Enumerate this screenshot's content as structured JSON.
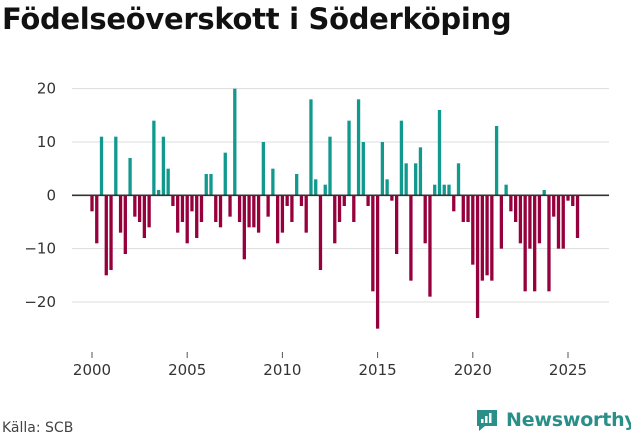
{
  "title": "Födelseöverskott i Söderköping",
  "source": "Källa: SCB",
  "brand": {
    "name": "Newsworthy",
    "icon": "newsworthy-logo-icon"
  },
  "colors": {
    "positive": "#11998e",
    "negative": "#96003c",
    "zero_line": "#333333",
    "grid": "#dddddd",
    "brand": "#2a8f88"
  },
  "chart_data": {
    "type": "bar",
    "title": "Födelseöverskott i Söderköping",
    "xlabel": "",
    "ylabel": "",
    "ylim": [
      -29,
      22
    ],
    "yticks": [
      -20,
      -10,
      0,
      10,
      20
    ],
    "xticks": [
      2000,
      2005,
      2010,
      2015,
      2020,
      2025
    ],
    "x_start": 2000.0,
    "x_step": 0.25,
    "grid": true,
    "values": [
      -3,
      -9,
      11,
      -15,
      -14,
      11,
      -7,
      -11,
      7,
      -4,
      -5,
      -8,
      -6,
      14,
      1,
      11,
      5,
      -2,
      -7,
      -5,
      -9,
      -3,
      -8,
      -5,
      4,
      4,
      -5,
      -6,
      8,
      -4,
      20,
      -5,
      -12,
      -6,
      -6,
      -7,
      10,
      -4,
      5,
      -9,
      -7,
      -2,
      -5,
      4,
      -2,
      -7,
      18,
      3,
      -14,
      2,
      11,
      -9,
      -5,
      -2,
      14,
      -5,
      18,
      10,
      -2,
      -18,
      -25,
      10,
      3,
      -1,
      -11,
      14,
      6,
      -16,
      6,
      9,
      -9,
      -19,
      2,
      16,
      2,
      2,
      -3,
      6,
      -5,
      -5,
      -13,
      -23,
      -16,
      -15,
      -16,
      13,
      -10,
      2,
      -3,
      -5,
      -9,
      -18,
      -10,
      -18,
      -9,
      1,
      -18,
      -4,
      -10,
      -10,
      -1,
      -2,
      -8
    ]
  }
}
